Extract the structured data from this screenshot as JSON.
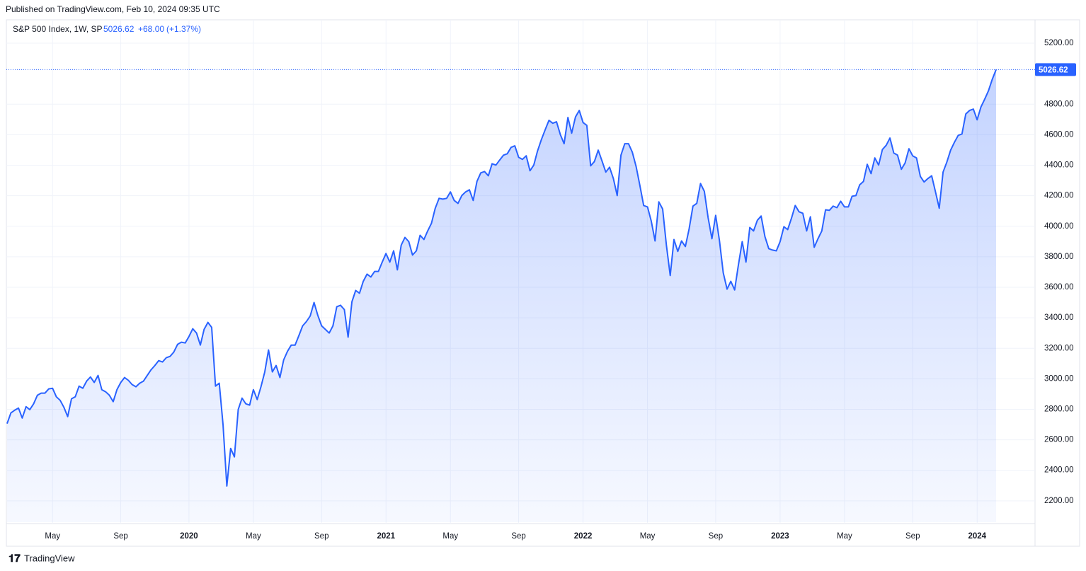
{
  "header": {
    "published": "Published on TradingView.com, Feb 10, 2024 09:35 UTC",
    "symbol": "S&P 500 Index, 1W, SP",
    "change": "+68.00",
    "change_pct": "(+1.37%)"
  },
  "footer": {
    "brand": "TradingView"
  },
  "chart_data": {
    "type": "line",
    "categories": [
      null,
      null,
      null,
      null,
      null,
      null,
      null,
      null,
      null,
      null,
      null,
      null,
      "May",
      null,
      null,
      null,
      null,
      null,
      null,
      null,
      null,
      null,
      null,
      null,
      null,
      null,
      null,
      null,
      null,
      null,
      "Sep",
      null,
      null,
      null,
      null,
      null,
      null,
      null,
      null,
      null,
      null,
      null,
      null,
      null,
      null,
      null,
      null,
      null,
      "2020",
      null,
      null,
      null,
      null,
      null,
      null,
      null,
      null,
      null,
      null,
      null,
      null,
      null,
      null,
      null,
      null,
      "May",
      null,
      null,
      null,
      null,
      null,
      null,
      null,
      null,
      null,
      null,
      null,
      null,
      null,
      null,
      null,
      null,
      null,
      "Sep",
      null,
      null,
      null,
      null,
      null,
      null,
      null,
      null,
      null,
      null,
      null,
      null,
      null,
      null,
      null,
      null,
      "2021",
      null,
      null,
      null,
      null,
      null,
      null,
      null,
      null,
      null,
      null,
      null,
      null,
      null,
      null,
      null,
      null,
      "May",
      null,
      null,
      null,
      null,
      null,
      null,
      null,
      null,
      null,
      null,
      null,
      null,
      null,
      null,
      null,
      null,
      null,
      "Sep",
      null,
      null,
      null,
      null,
      null,
      null,
      null,
      null,
      null,
      null,
      null,
      null,
      null,
      null,
      null,
      null,
      "2022",
      null,
      null,
      null,
      null,
      null,
      null,
      null,
      null,
      null,
      null,
      null,
      null,
      null,
      null,
      null,
      null,
      "May",
      null,
      null,
      null,
      null,
      null,
      null,
      null,
      null,
      null,
      null,
      null,
      null,
      null,
      null,
      null,
      null,
      null,
      "Sep",
      null,
      null,
      null,
      null,
      null,
      null,
      null,
      null,
      null,
      null,
      null,
      null,
      null,
      null,
      null,
      null,
      "2023",
      null,
      null,
      null,
      null,
      null,
      null,
      null,
      null,
      null,
      null,
      null,
      null,
      null,
      null,
      null,
      null,
      "May",
      null,
      null,
      null,
      null,
      null,
      null,
      null,
      null,
      null,
      null,
      null,
      null,
      null,
      null,
      null,
      null,
      null,
      "Sep",
      null,
      null,
      null,
      null,
      null,
      null,
      null,
      null,
      null,
      null,
      null,
      null,
      null,
      null,
      null,
      null,
      "2024",
      null,
      null,
      null,
      null,
      null
    ],
    "series": [
      {
        "name": "S&P 500 Index",
        "color": "#2962ff",
        "values": [
          2706,
          2776,
          2794,
          2808,
          2743,
          2817,
          2798,
          2836,
          2892,
          2906,
          2906,
          2934,
          2938,
          2882,
          2859,
          2813,
          2752,
          2869,
          2882,
          2952,
          2938,
          2985,
          3012,
          2976,
          3022,
          2929,
          2915,
          2892,
          2850,
          2929,
          2976,
          3008,
          2990,
          2962,
          2948,
          2971,
          2985,
          3022,
          3059,
          3087,
          3119,
          3110,
          3138,
          3147,
          3175,
          3226,
          3240,
          3235,
          3277,
          3328,
          3300,
          3221,
          3324,
          3370,
          3337,
          2952,
          2971,
          2696,
          2297,
          2544,
          2488,
          2799,
          2873,
          2836,
          2827,
          2929,
          2864,
          2948,
          3045,
          3189,
          3045,
          3087,
          3008,
          3124,
          3180,
          3221,
          3221,
          3282,
          3347,
          3375,
          3412,
          3500,
          3416,
          3347,
          3324,
          3300,
          3347,
          3472,
          3482,
          3454,
          3273,
          3505,
          3579,
          3561,
          3639,
          3686,
          3667,
          3704,
          3704,
          3765,
          3821,
          3765,
          3839,
          3714,
          3876,
          3927,
          3899,
          3811,
          3839,
          3941,
          3913,
          3969,
          4020,
          4118,
          4183,
          4178,
          4183,
          4225,
          4169,
          4150,
          4201,
          4225,
          4239,
          4169,
          4294,
          4350,
          4359,
          4331,
          4410,
          4401,
          4434,
          4466,
          4475,
          4517,
          4527,
          4452,
          4438,
          4462,
          4364,
          4401,
          4494,
          4568,
          4633,
          4694,
          4675,
          4685,
          4601,
          4541,
          4713,
          4610,
          4717,
          4759,
          4680,
          4661,
          4396,
          4424,
          4499,
          4429,
          4355,
          4387,
          4313,
          4201,
          4466,
          4541,
          4541,
          4485,
          4392,
          4266,
          4136,
          4127,
          4034,
          3904,
          4160,
          4113,
          3876,
          3677,
          3913,
          3835,
          3904,
          3867,
          3983,
          4132,
          4150,
          4280,
          4229,
          4057,
          3918,
          4071,
          3904,
          3695,
          3588,
          3639,
          3583,
          3746,
          3899,
          3765,
          3992,
          3969,
          4039,
          4067,
          3932,
          3853,
          3844,
          3839,
          3899,
          3997,
          3978,
          4053,
          4136,
          4095,
          4085,
          3969,
          4062,
          3862,
          3918,
          3969,
          4108,
          4104,
          4132,
          4122,
          4164,
          4127,
          4127,
          4197,
          4201,
          4271,
          4294,
          4406,
          4345,
          4448,
          4401,
          4503,
          4531,
          4578,
          4480,
          4466,
          4373,
          4415,
          4508,
          4462,
          4448,
          4327,
          4290,
          4313,
          4331,
          4225,
          4118,
          4355,
          4420,
          4499,
          4550,
          4596,
          4605,
          4736,
          4759,
          4768,
          4698,
          4782,
          4833,
          4889,
          4963,
          5026.62
        ]
      }
    ],
    "ylim": [
      2060,
      5344
    ],
    "yticks": [
      {
        "value": 2200,
        "label": "2200.00"
      },
      {
        "value": 2400,
        "label": "2400.00"
      },
      {
        "value": 2600,
        "label": "2600.00"
      },
      {
        "value": 2800,
        "label": "2800.00"
      },
      {
        "value": 3000,
        "label": "3000.00"
      },
      {
        "value": 3200,
        "label": "3200.00"
      },
      {
        "value": 3400,
        "label": "3400.00"
      },
      {
        "value": 3600,
        "label": "3600.00"
      },
      {
        "value": 3800,
        "label": "3800.00"
      },
      {
        "value": 4000,
        "label": "4000.00"
      },
      {
        "value": 4200,
        "label": "4200.00"
      },
      {
        "value": 4400,
        "label": "4400.00"
      },
      {
        "value": 4600,
        "label": "4600.00"
      },
      {
        "value": 4800,
        "label": "4800.00"
      },
      {
        "value": 5200,
        "label": "5200.00"
      }
    ],
    "grid": true
  }
}
